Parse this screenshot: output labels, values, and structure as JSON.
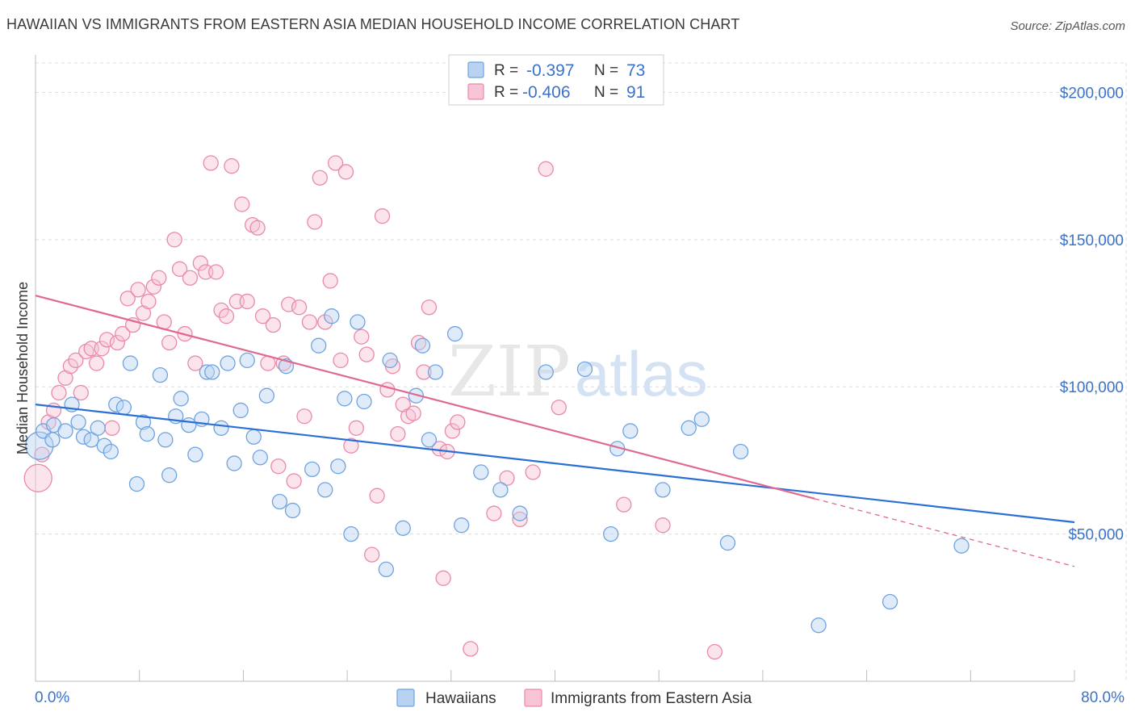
{
  "title": "HAWAIIAN VS IMMIGRANTS FROM EASTERN ASIA MEDIAN HOUSEHOLD INCOME CORRELATION CHART",
  "source": "Source: ZipAtlas.com",
  "watermark": {
    "zip": "ZIP",
    "atlas": "atlas"
  },
  "colors": {
    "blue": "#6fa3e0",
    "blue_fill": "#b9d2f2",
    "blue_line": "#2a6fd6",
    "pink": "#e98aaa",
    "pink_fill": "#f6c4d4",
    "pink_line": "#e06990",
    "axis_text": "#3b72c9",
    "grid": "#dddddd"
  },
  "legend": {
    "rows": [
      {
        "r_label": "R = ",
        "r_value": "-0.397",
        "n_label": "N = ",
        "n_value": "73"
      },
      {
        "r_label": "R = ",
        "r_value": "-0.406",
        "n_label": "N = ",
        "n_value": "91"
      }
    ]
  },
  "chart_data": {
    "type": "scatter",
    "title": "HAWAIIAN VS IMMIGRANTS FROM EASTERN ASIA MEDIAN HOUSEHOLD INCOME CORRELATION CHART",
    "xlabel": "",
    "ylabel": "Median Household Income",
    "xlim": [
      0,
      80
    ],
    "ylim": [
      0,
      210000
    ],
    "x_tick_labels": [
      "0.0%",
      "80.0%"
    ],
    "y_ticks": [
      50000,
      100000,
      150000,
      200000
    ],
    "y_tick_labels": [
      "$50,000",
      "$100,000",
      "$150,000",
      "$200,000"
    ],
    "grid": true,
    "legend_position": "top-center",
    "series": [
      {
        "name": "Hawaiians",
        "color": "#6fa3e0",
        "trend": {
          "x": [
            0,
            80
          ],
          "y": [
            94000,
            54000
          ]
        },
        "points": [
          [
            0.3,
            80000,
            "l"
          ],
          [
            0.6,
            85000
          ],
          [
            1.3,
            82000
          ],
          [
            1.4,
            87000
          ],
          [
            2.3,
            85000
          ],
          [
            2.8,
            94000
          ],
          [
            3.3,
            88000
          ],
          [
            3.7,
            83000
          ],
          [
            4.3,
            82000
          ],
          [
            4.8,
            86000
          ],
          [
            5.3,
            80000
          ],
          [
            5.8,
            78000
          ],
          [
            6.2,
            94000
          ],
          [
            6.8,
            93000
          ],
          [
            7.3,
            108000
          ],
          [
            7.8,
            67000
          ],
          [
            8.3,
            88000
          ],
          [
            8.6,
            84000
          ],
          [
            9.6,
            104000
          ],
          [
            10.0,
            82000
          ],
          [
            10.3,
            70000
          ],
          [
            10.8,
            90000
          ],
          [
            11.2,
            96000
          ],
          [
            11.8,
            87000
          ],
          [
            12.3,
            77000
          ],
          [
            12.8,
            89000
          ],
          [
            13.2,
            105000
          ],
          [
            13.6,
            105000
          ],
          [
            14.3,
            86000
          ],
          [
            14.8,
            108000
          ],
          [
            15.3,
            74000
          ],
          [
            15.8,
            92000
          ],
          [
            16.3,
            109000
          ],
          [
            16.8,
            83000
          ],
          [
            17.3,
            76000
          ],
          [
            17.8,
            97000
          ],
          [
            18.8,
            61000
          ],
          [
            19.3,
            107000
          ],
          [
            19.8,
            58000
          ],
          [
            21.3,
            72000
          ],
          [
            21.8,
            114000
          ],
          [
            22.3,
            65000
          ],
          [
            22.8,
            124000
          ],
          [
            23.3,
            73000
          ],
          [
            23.8,
            96000
          ],
          [
            24.3,
            50000
          ],
          [
            24.8,
            122000
          ],
          [
            25.3,
            95000
          ],
          [
            27.0,
            38000
          ],
          [
            27.3,
            109000
          ],
          [
            28.3,
            52000
          ],
          [
            29.3,
            97000
          ],
          [
            29.8,
            114000
          ],
          [
            30.3,
            82000
          ],
          [
            30.8,
            105000
          ],
          [
            32.3,
            118000
          ],
          [
            32.8,
            53000
          ],
          [
            34.3,
            71000
          ],
          [
            35.8,
            65000
          ],
          [
            37.3,
            57000
          ],
          [
            39.3,
            105000
          ],
          [
            42.3,
            106000
          ],
          [
            44.3,
            50000
          ],
          [
            44.8,
            79000
          ],
          [
            45.8,
            85000
          ],
          [
            48.3,
            65000
          ],
          [
            50.3,
            86000
          ],
          [
            51.3,
            89000
          ],
          [
            53.3,
            47000
          ],
          [
            54.3,
            78000
          ],
          [
            60.3,
            19000
          ],
          [
            65.8,
            27000
          ],
          [
            71.3,
            46000
          ]
        ]
      },
      {
        "name": "Immigrants from Eastern Asia",
        "color": "#e98aaa",
        "trend": {
          "x": [
            0,
            60
          ],
          "y": [
            131000,
            62000
          ]
        },
        "trend_dashed": {
          "x": [
            60,
            80
          ],
          "y": [
            62000,
            39000
          ]
        },
        "points": [
          [
            0.2,
            69000,
            "l"
          ],
          [
            0.5,
            77000
          ],
          [
            1.0,
            88000
          ],
          [
            1.4,
            92000
          ],
          [
            1.8,
            98000
          ],
          [
            2.3,
            103000
          ],
          [
            2.7,
            107000
          ],
          [
            3.1,
            109000
          ],
          [
            3.5,
            98000
          ],
          [
            3.9,
            112000
          ],
          [
            4.3,
            113000
          ],
          [
            4.7,
            108000
          ],
          [
            5.1,
            113000
          ],
          [
            5.5,
            116000
          ],
          [
            5.9,
            86000
          ],
          [
            6.3,
            115000
          ],
          [
            6.7,
            118000
          ],
          [
            7.1,
            130000
          ],
          [
            7.5,
            121000
          ],
          [
            7.9,
            133000
          ],
          [
            8.3,
            125000
          ],
          [
            8.7,
            129000
          ],
          [
            9.1,
            134000
          ],
          [
            9.5,
            137000
          ],
          [
            9.9,
            122000
          ],
          [
            10.3,
            115000
          ],
          [
            10.7,
            150000
          ],
          [
            11.1,
            140000
          ],
          [
            11.5,
            118000
          ],
          [
            11.9,
            137000
          ],
          [
            12.3,
            108000
          ],
          [
            12.7,
            142000
          ],
          [
            13.1,
            139000
          ],
          [
            13.5,
            176000
          ],
          [
            13.9,
            139000
          ],
          [
            14.3,
            126000
          ],
          [
            14.7,
            124000
          ],
          [
            15.1,
            175000
          ],
          [
            15.5,
            129000
          ],
          [
            15.9,
            162000
          ],
          [
            16.3,
            129000
          ],
          [
            16.7,
            155000
          ],
          [
            17.1,
            154000
          ],
          [
            17.5,
            124000
          ],
          [
            17.9,
            108000
          ],
          [
            18.3,
            121000
          ],
          [
            18.7,
            73000
          ],
          [
            19.1,
            108000
          ],
          [
            19.5,
            128000
          ],
          [
            19.9,
            68000
          ],
          [
            20.3,
            127000
          ],
          [
            20.7,
            90000
          ],
          [
            21.1,
            122000
          ],
          [
            21.5,
            156000
          ],
          [
            21.9,
            171000
          ],
          [
            22.3,
            122000
          ],
          [
            22.7,
            136000
          ],
          [
            23.1,
            176000
          ],
          [
            23.5,
            109000
          ],
          [
            23.9,
            173000
          ],
          [
            24.3,
            80000
          ],
          [
            24.7,
            86000
          ],
          [
            25.1,
            117000
          ],
          [
            25.5,
            111000
          ],
          [
            25.9,
            43000
          ],
          [
            26.3,
            63000
          ],
          [
            26.7,
            158000
          ],
          [
            27.1,
            99000
          ],
          [
            27.5,
            107000
          ],
          [
            27.9,
            84000
          ],
          [
            28.3,
            94000
          ],
          [
            28.7,
            90000
          ],
          [
            29.1,
            91000
          ],
          [
            29.5,
            115000
          ],
          [
            29.9,
            105000
          ],
          [
            30.3,
            127000
          ],
          [
            31.1,
            79000
          ],
          [
            31.4,
            35000
          ],
          [
            31.7,
            78000
          ],
          [
            32.1,
            85000
          ],
          [
            32.5,
            88000
          ],
          [
            33.5,
            11000
          ],
          [
            35.3,
            57000
          ],
          [
            36.3,
            69000
          ],
          [
            37.3,
            55000
          ],
          [
            38.3,
            71000
          ],
          [
            39.3,
            174000
          ],
          [
            40.3,
            93000
          ],
          [
            45.3,
            60000
          ],
          [
            48.3,
            53000
          ],
          [
            52.3,
            10000
          ]
        ]
      }
    ]
  }
}
